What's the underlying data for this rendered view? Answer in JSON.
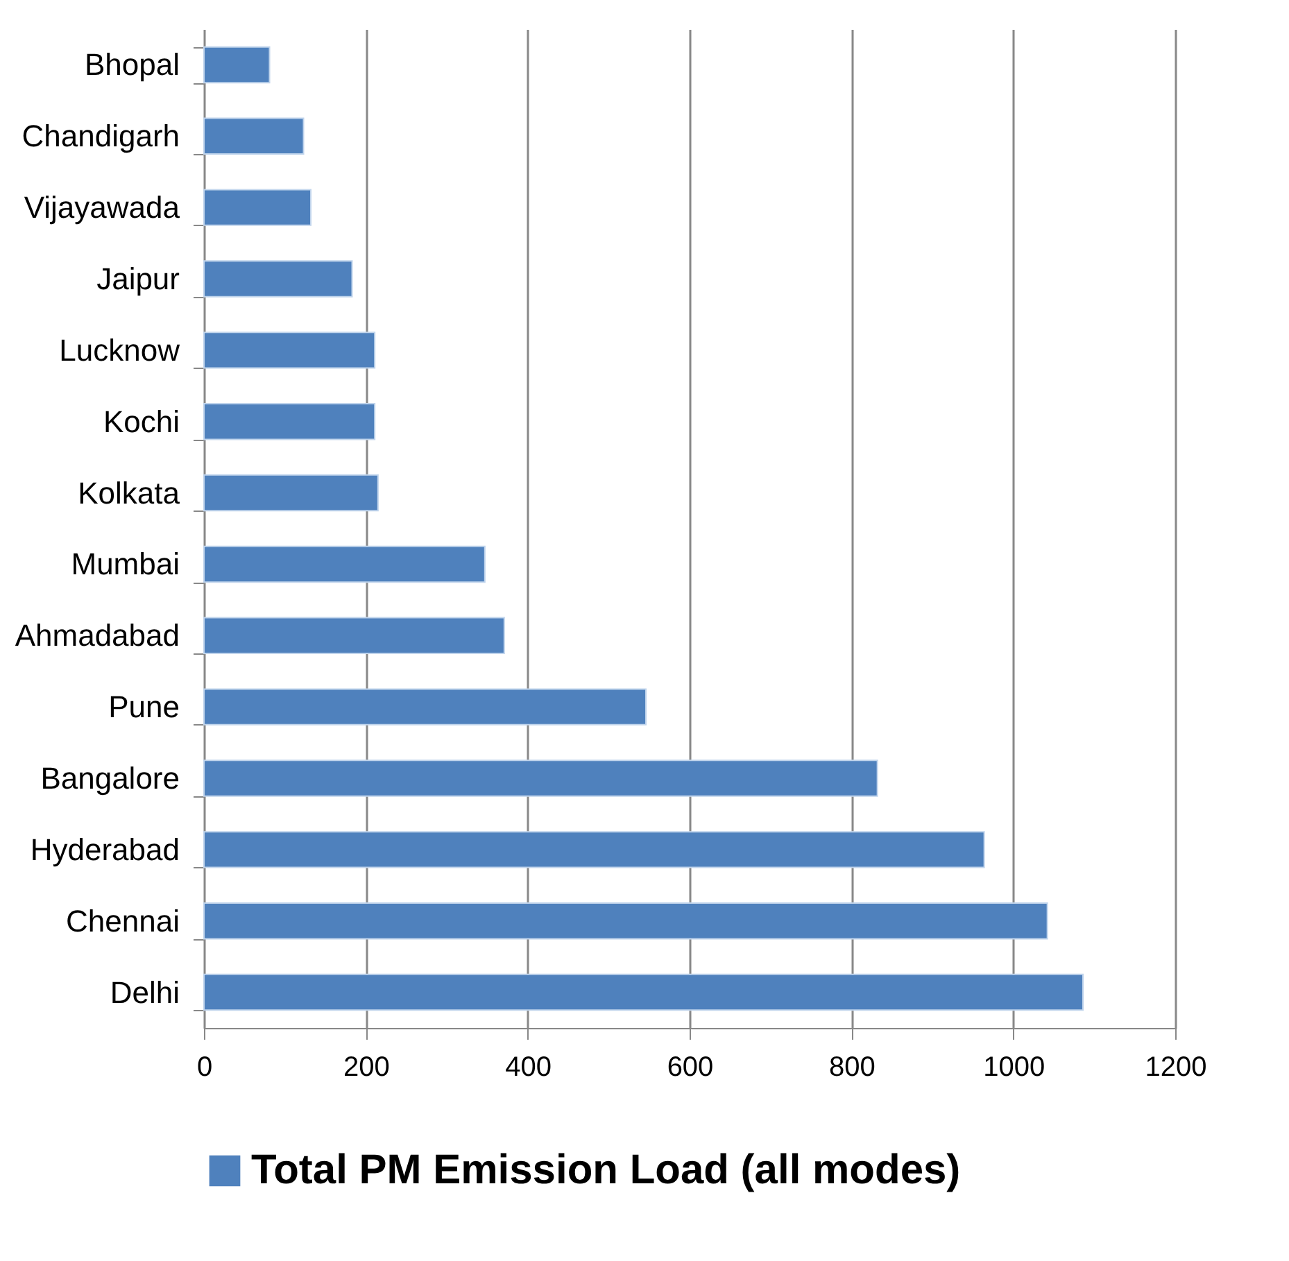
{
  "chart_data": {
    "type": "bar",
    "orientation": "horizontal",
    "categories": [
      "Bhopal",
      "Chandigarh",
      "Vijayawada",
      "Jaipur",
      "Lucknow",
      "Kochi",
      "Kolkata",
      "Mumbai",
      "Ahmadabad",
      "Pune",
      "Bangalore",
      "Hyderabad",
      "Chennai",
      "Delhi"
    ],
    "series": [
      {
        "name": "Total PM Emission Load (all modes)",
        "color": "#4f81bd",
        "values": [
          81,
          123,
          132,
          183,
          211,
          211,
          215,
          347,
          371,
          546,
          832,
          964,
          1042,
          1086
        ]
      }
    ],
    "xlim": [
      0,
      1200
    ],
    "xticks": [
      0,
      200,
      400,
      600,
      800,
      1000,
      1200
    ],
    "grid": "x",
    "legend": "bottom"
  }
}
